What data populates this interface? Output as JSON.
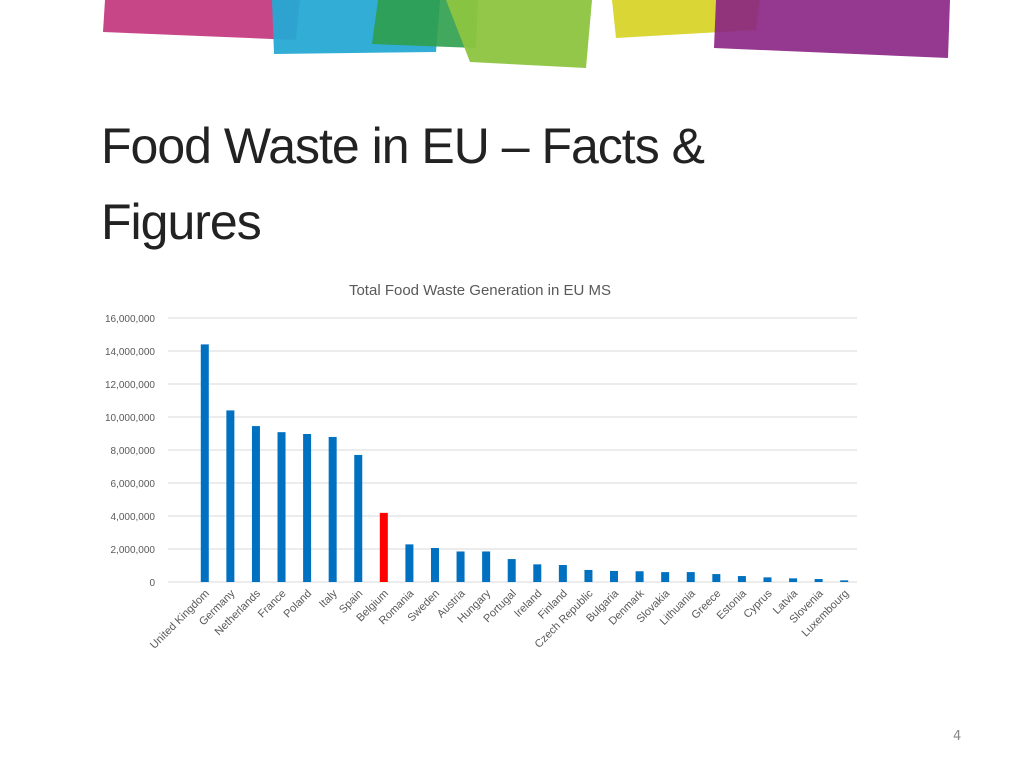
{
  "slide": {
    "title": "Food Waste in EU – Facts & Figures",
    "page_number": "4"
  },
  "colors": {
    "bar": "#0070c0",
    "highlight": "#ff0000",
    "decoration": [
      "#c0327a",
      "#27a9d4",
      "#2e9e4b",
      "#8cc43f",
      "#d8d42a",
      "#8a2283"
    ]
  },
  "chart_data": {
    "type": "bar",
    "title": "Total Food Waste Generation in EU MS",
    "xlabel": "",
    "ylabel": "",
    "ylim": [
      0,
      16000000
    ],
    "yticks": [
      0,
      2000000,
      4000000,
      6000000,
      8000000,
      10000000,
      12000000,
      14000000,
      16000000
    ],
    "ytick_labels": [
      "0",
      "2,000,000",
      "4,000,000",
      "6,000,000",
      "8,000,000",
      "10,000,000",
      "12,000,000",
      "14,000,000",
      "16,000,000"
    ],
    "grid": true,
    "highlighted_category": "Belgium",
    "categories": [
      "United Kingdom",
      "Germany",
      "Netherlands",
      "France",
      "Poland",
      "Italy",
      "Spain",
      "Belgium",
      "Romania",
      "Sweden",
      "Austria",
      "Hungary",
      "Portugal",
      "Ireland",
      "Finland",
      "Czech Republic",
      "Bulgaria",
      "Denmark",
      "Slovakia",
      "Lithuania",
      "Greece",
      "Estonia",
      "Cyprus",
      "Latvia",
      "Slovenia",
      "Luxembourg"
    ],
    "values": [
      14400000,
      10400000,
      9450000,
      9080000,
      8970000,
      8790000,
      7700000,
      4190000,
      2280000,
      2060000,
      1850000,
      1850000,
      1390000,
      1070000,
      1030000,
      730000,
      670000,
      650000,
      600000,
      600000,
      480000,
      360000,
      280000,
      220000,
      180000,
      100000
    ]
  }
}
